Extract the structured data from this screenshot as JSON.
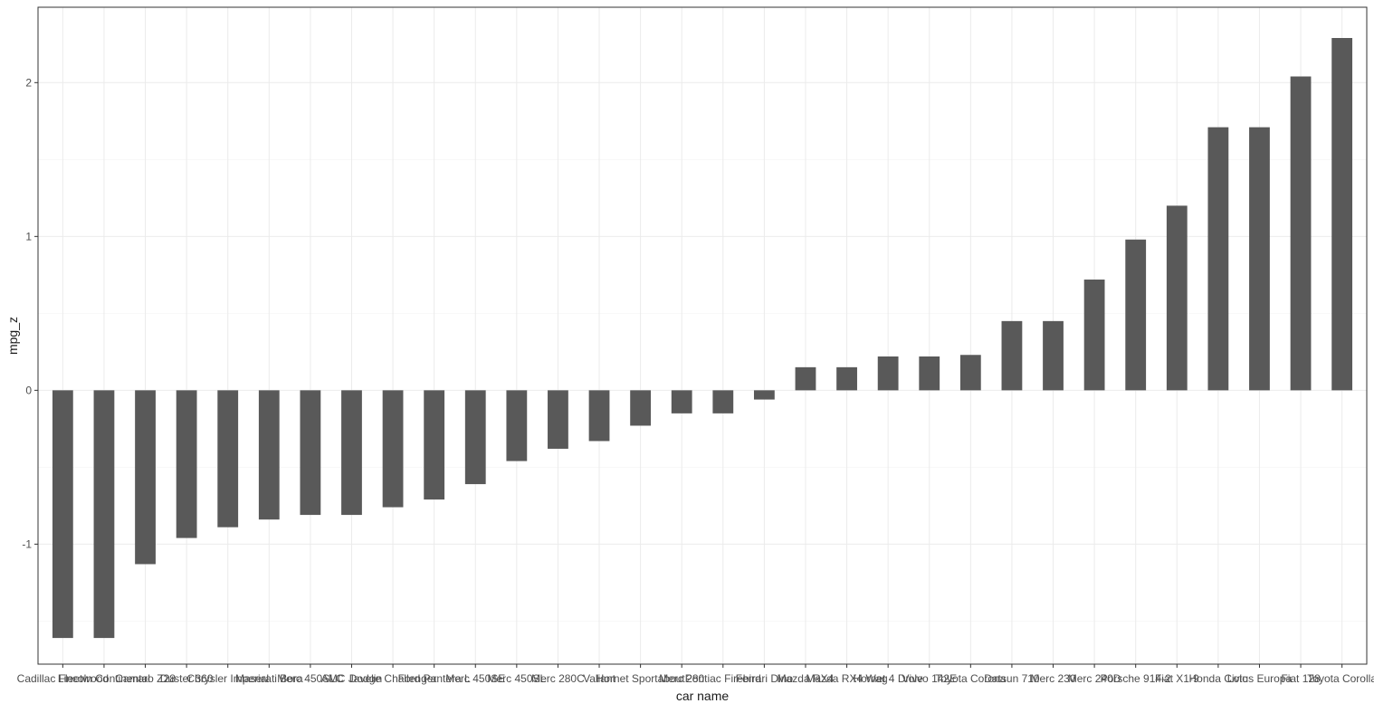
{
  "colors": {
    "bar": "#595959",
    "panel_border": "#333333",
    "grid_major": "#ebebeb",
    "grid_minor": "#f5f5f5",
    "tick_text": "#4d4d4d",
    "title_text": "#1a1a1a",
    "background": "#ffffff"
  },
  "chart_data": {
    "type": "bar",
    "xlabel": "car name",
    "ylabel": "mpg_z",
    "ylim": [
      -1.78,
      2.49
    ],
    "y_ticks": [
      -1,
      0,
      1,
      2
    ],
    "y_tick_labels": [
      "-1",
      "0",
      "1",
      "2"
    ],
    "grid": true,
    "legend": "none",
    "categories": [
      "Cadillac Fleetwood",
      "Lincoln Continental",
      "Camaro Z28",
      "Duster 360",
      "Chrysler Imperial",
      "Maserati Bora",
      "Merc 450SLC",
      "AMC Javelin",
      "Dodge Challenger",
      "Ford Pantera L",
      "Merc 450SE",
      "Merc 450SL",
      "Merc 280C",
      "Valiant",
      "Hornet Sportabout",
      "Merc 280",
      "Pontiac Firebird",
      "Ferrari Dino",
      "Mazda RX4",
      "Mazda RX4 Wag",
      "Hornet 4 Drive",
      "Volvo 142E",
      "Toyota Corona",
      "Datsun 710",
      "Merc 230",
      "Merc 240D",
      "Porsche 914-2",
      "Fiat X1-9",
      "Honda Civic",
      "Lotus Europa",
      "Fiat 128",
      "Toyota Corolla"
    ],
    "values": [
      -1.61,
      -1.61,
      -1.13,
      -0.96,
      -0.89,
      -0.84,
      -0.81,
      -0.81,
      -0.76,
      -0.71,
      -0.61,
      -0.46,
      -0.38,
      -0.33,
      -0.23,
      -0.15,
      -0.15,
      -0.06,
      0.15,
      0.15,
      0.22,
      0.22,
      0.23,
      0.45,
      0.45,
      0.72,
      0.98,
      1.2,
      1.71,
      1.71,
      2.04,
      2.29
    ]
  }
}
